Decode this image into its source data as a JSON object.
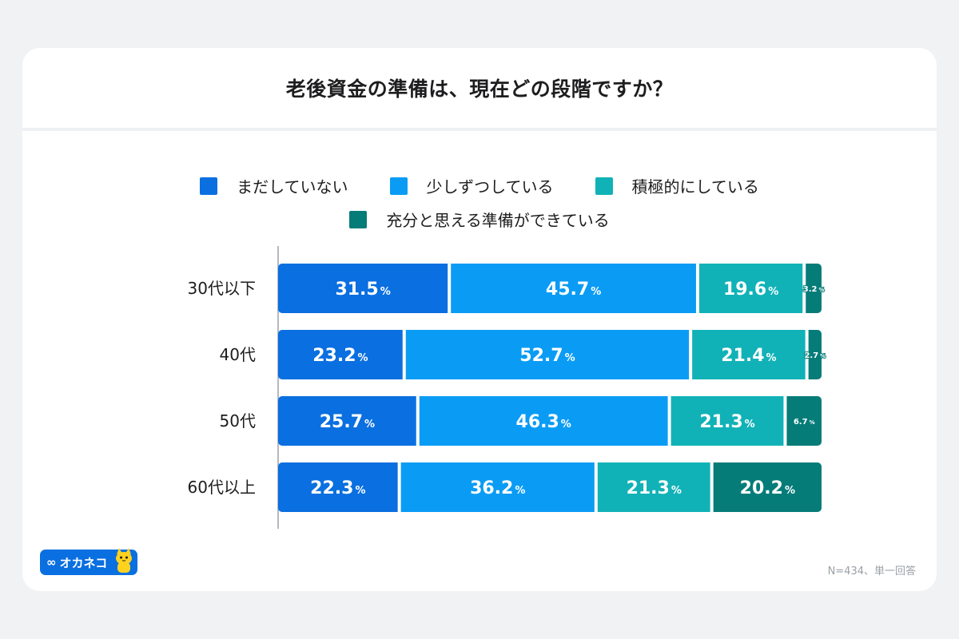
{
  "title": "老後資金の準備は、現在どの段階ですか？",
  "legend": [
    {
      "label": "まだしていない",
      "color": "#0a6fe0"
    },
    {
      "label": "少しずつしている",
      "color": "#0a9cf5"
    },
    {
      "label": "積極的にしている",
      "color": "#11b2b7"
    },
    {
      "label": "充分と思える準備ができている",
      "color": "#067c79"
    }
  ],
  "logo": {
    "text": "オカネコ",
    "icon": "cat-mascot-icon"
  },
  "note": "N=434、単一回答",
  "chart_data": {
    "type": "bar",
    "orientation": "horizontal",
    "stacked": true,
    "title": "老後資金の準備は、現在どの段階ですか？",
    "categories": [
      "30代以下",
      "40代",
      "50代",
      "60代以上"
    ],
    "unit": "%",
    "xlim": [
      0,
      100
    ],
    "grid": false,
    "legend_position": "top",
    "series": [
      {
        "name": "まだしていない",
        "color": "#0a6fe0",
        "values": [
          31.5,
          23.2,
          25.7,
          22.3
        ],
        "labels": [
          "31.5",
          "23.2",
          "25.7",
          "22.3"
        ]
      },
      {
        "name": "少しずつしている",
        "color": "#0a9cf5",
        "values": [
          45.7,
          52.7,
          46.3,
          36.2
        ],
        "labels": [
          "45.7",
          "52.7",
          "46.3",
          "36.2"
        ]
      },
      {
        "name": "積極的にしている",
        "color": "#11b2b7",
        "values": [
          19.6,
          21.4,
          21.3,
          21.3
        ],
        "labels": [
          "19.6",
          "21.4",
          "21.3",
          "21.3"
        ]
      },
      {
        "name": "充分と思える準備ができている",
        "color": "#067c79",
        "values": [
          3.2,
          2.7,
          6.7,
          20.2
        ],
        "labels": [
          "3.2",
          "2.7",
          "6.7",
          "20.2"
        ]
      }
    ]
  }
}
